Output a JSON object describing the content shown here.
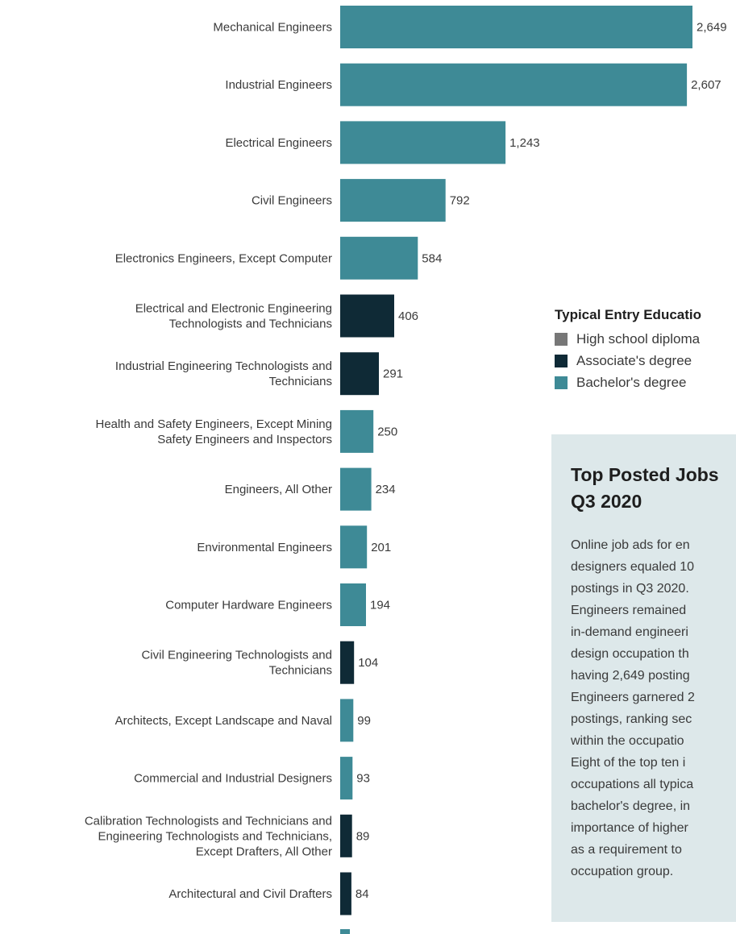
{
  "chart_data": {
    "type": "bar",
    "orientation": "horizontal",
    "categories": [
      "Mechanical Engineers",
      "Industrial Engineers",
      "Electrical Engineers",
      "Civil Engineers",
      "Electronics Engineers, Except Computer",
      "Electrical and Electronic Engineering Technologists and Technicians",
      "Industrial Engineering Technologists and Technicians",
      "Health and Safety Engineers, Except Mining Safety Engineers and Inspectors",
      "Engineers, All Other",
      "Environmental Engineers",
      "Computer Hardware Engineers",
      "Civil Engineering Technologists and Technicians",
      "Architects, Except Landscape and Naval",
      "Commercial and Industrial Designers",
      "Calibration Technologists and Technicians and Engineering Technologists and Technicians, Except Drafters, All Other",
      "Architectural and Civil Drafters"
    ],
    "category_lines": [
      [
        "Mechanical Engineers"
      ],
      [
        "Industrial Engineers"
      ],
      [
        "Electrical Engineers"
      ],
      [
        "Civil Engineers"
      ],
      [
        "Electronics Engineers, Except Computer"
      ],
      [
        "Electrical and Electronic Engineering",
        "Technologists and Technicians"
      ],
      [
        "Industrial Engineering Technologists and",
        "Technicians"
      ],
      [
        "Health and Safety Engineers, Except Mining",
        "Safety Engineers and Inspectors"
      ],
      [
        "Engineers, All Other"
      ],
      [
        "Environmental Engineers"
      ],
      [
        "Computer Hardware Engineers"
      ],
      [
        "Civil Engineering Technologists and",
        "Technicians"
      ],
      [
        "Architects, Except Landscape and Naval"
      ],
      [
        "Commercial and Industrial Designers"
      ],
      [
        "Calibration Technologists and Technicians and",
        "Engineering Technologists and Technicians,",
        "Except Drafters, All Other"
      ],
      [
        "Architectural and Civil Drafters"
      ]
    ],
    "values": [
      2649,
      2607,
      1243,
      792,
      584,
      406,
      291,
      250,
      234,
      201,
      194,
      104,
      99,
      93,
      89,
      84
    ],
    "value_labels": [
      "2,649",
      "2,607",
      "1,243",
      "792",
      "584",
      "406",
      "291",
      "250",
      "234",
      "201",
      "194",
      "104",
      "99",
      "93",
      "89",
      "84"
    ],
    "education": [
      "Bachelor's degree",
      "Bachelor's degree",
      "Bachelor's degree",
      "Bachelor's degree",
      "Bachelor's degree",
      "Associate's degree",
      "Associate's degree",
      "Bachelor's degree",
      "Bachelor's degree",
      "Bachelor's degree",
      "Bachelor's degree",
      "Associate's degree",
      "Bachelor's degree",
      "Bachelor's degree",
      "Associate's degree",
      "Associate's degree"
    ],
    "xlim": [
      0,
      2649
    ],
    "grid": false,
    "legend_placement": "right"
  },
  "legend": {
    "title": "Typical Entry Educatio",
    "items": [
      {
        "label": "High school diploma",
        "color": "#777777"
      },
      {
        "label": "Associate's degree",
        "color": "#0f2a36"
      },
      {
        "label": "Bachelor's degree",
        "color": "#3e8a96"
      }
    ]
  },
  "info_box": {
    "title": "Top Posted Jobs\nQ3 2020",
    "body": "Online job ads for en\ndesigners equaled 10\npostings in Q3 2020.\nEngineers remained\nin-demand engineeri\ndesign occupation th\nhaving 2,649 posting\nEngineers garnered 2\npostings, ranking sec\nwithin the occupatio\nEight of the top ten i\noccupations all typica\nbachelor's degree, in\nimportance of higher\nas a requirement to\noccupation group."
  },
  "colors": {
    "Bachelor's degree": "#3e8a96",
    "Associate's degree": "#0f2a36",
    "High school diploma": "#777777"
  }
}
